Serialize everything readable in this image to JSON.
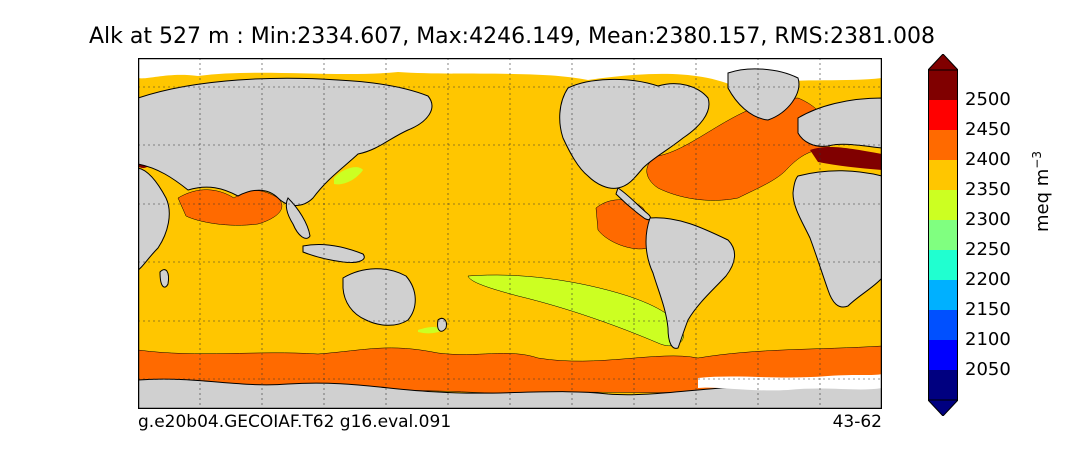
{
  "title": "Alk at 527 m : Min:2334.607, Max:4246.149, Mean:2380.157, RMS:2381.008",
  "footer": {
    "left": "g.e20b04.GECOIAF.T62 g16.eval.091",
    "right": "43-62"
  },
  "colorbar": {
    "unit_text": "meq m",
    "unit_sup": "−3",
    "levels": [
      "2050",
      "2100",
      "2150",
      "2200",
      "2250",
      "2300",
      "2350",
      "2400",
      "2450",
      "2500"
    ],
    "colors": {
      "below": "#000080",
      "2000-2050": "#000080",
      "2050-2100": "#0000ff",
      "2100-2150": "#0050ff",
      "2150-2200": "#00b0ff",
      "2200-2250": "#20ffd0",
      "2250-2300": "#80ff80",
      "2300-2350": "#ccff22",
      "2350-2400": "#ffc600",
      "2400-2450": "#ff6a00",
      "2450-2500": "#ff0000",
      "above": "#800000"
    }
  },
  "map": {
    "land_color": "#d0d0d0",
    "ocean_background": "#ffc600",
    "regions": [
      {
        "name": "north-indian-ocean",
        "band": "2400-2450"
      },
      {
        "name": "north-atlantic",
        "band": "2400-2450"
      },
      {
        "name": "eastern-tropical-pacific",
        "band": "2400-2450"
      },
      {
        "name": "southern-ocean",
        "band": "2400-2450"
      },
      {
        "name": "south-pacific-minimum",
        "band": "2300-2350"
      },
      {
        "name": "mediterranean",
        "band": "above"
      }
    ]
  }
}
